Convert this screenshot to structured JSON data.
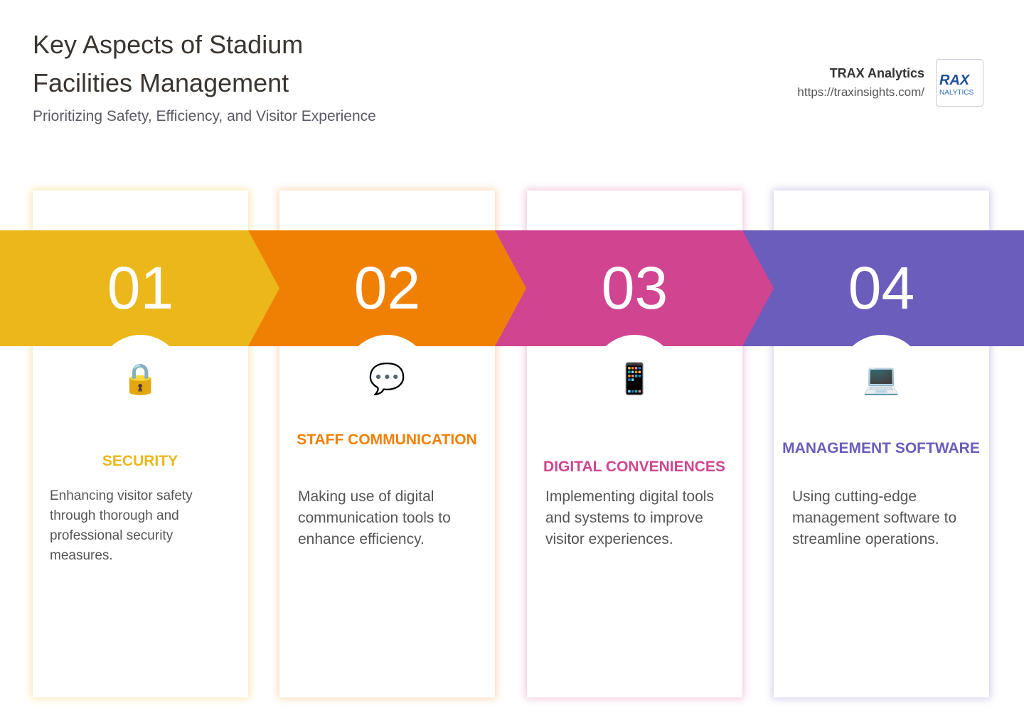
{
  "header": {
    "title": "Key Aspects of Stadium Facilities Management",
    "subtitle": "Prioritizing Safety, Efficiency, and Visitor Experience"
  },
  "brand": {
    "name": "TRAX Analytics",
    "url": "https://traxinsights.com/",
    "logo_lines": [
      "RAX",
      "NALYTICS"
    ]
  },
  "cards": [
    {
      "number": "01",
      "icon": "🔒",
      "title": "SECURITY",
      "description": "Enhancing visitor safety through thorough and professional security measures."
    },
    {
      "number": "02",
      "icon": "💬",
      "title": "STAFF COMMUNICATION",
      "description": "Making use of digital communication tools to enhance efficiency."
    },
    {
      "number": "03",
      "icon": "📱",
      "title": "DIGITAL CONVENIENCES",
      "description": "Implementing digital tools and systems to improve visitor experiences."
    },
    {
      "number": "04",
      "icon": "💻",
      "title": "MANAGEMENT SOFTWARE",
      "description": "Using cutting-edge management software to streamline operations."
    }
  ]
}
